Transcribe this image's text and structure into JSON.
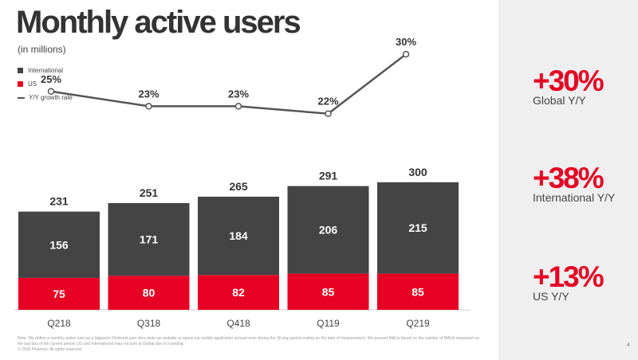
{
  "title": "Monthly active users",
  "subtitle": "(in millions)",
  "legend": [
    {
      "label": "International",
      "color": "#444444"
    },
    {
      "label": "US",
      "color": "#e60023"
    },
    {
      "label": "Y/Y growth rate",
      "color": "#555555"
    }
  ],
  "chart_data": {
    "type": "bar",
    "stacked": true,
    "categories": [
      "Q218",
      "Q318",
      "Q418",
      "Q119",
      "Q219"
    ],
    "series": [
      {
        "name": "US",
        "values": [
          75,
          80,
          82,
          85,
          85
        ],
        "color": "#e60023"
      },
      {
        "name": "International",
        "values": [
          156,
          171,
          184,
          206,
          215
        ],
        "color": "#444444"
      }
    ],
    "totals": [
      231,
      251,
      265,
      291,
      300
    ],
    "line": {
      "name": "Y/Y growth rate",
      "values": [
        25,
        23,
        23,
        22,
        30
      ],
      "labels": [
        "25%",
        "23%",
        "23%",
        "22%",
        "30%"
      ],
      "color": "#555555"
    },
    "ylim": [
      0,
      300
    ],
    "grid": false,
    "legend_position": "top-left"
  },
  "footnote": "Note: We define a monthly active user as a logged-in Pinterest user who visits our website or opens our mobile application at least once during the 30-day period ending on the date of measurement. We present MAUs based on the number of MAUs measured on the last day of the current period. US and International may not sum to Global due to rounding.",
  "copyright": "© 2019 Pinterest. All rights reserved.",
  "stats": [
    {
      "value": "+30%",
      "label": "Global Y/Y"
    },
    {
      "value": "+38%",
      "label": "International Y/Y"
    },
    {
      "value": "+13%",
      "label": "US Y/Y"
    }
  ],
  "page_mark": "4"
}
